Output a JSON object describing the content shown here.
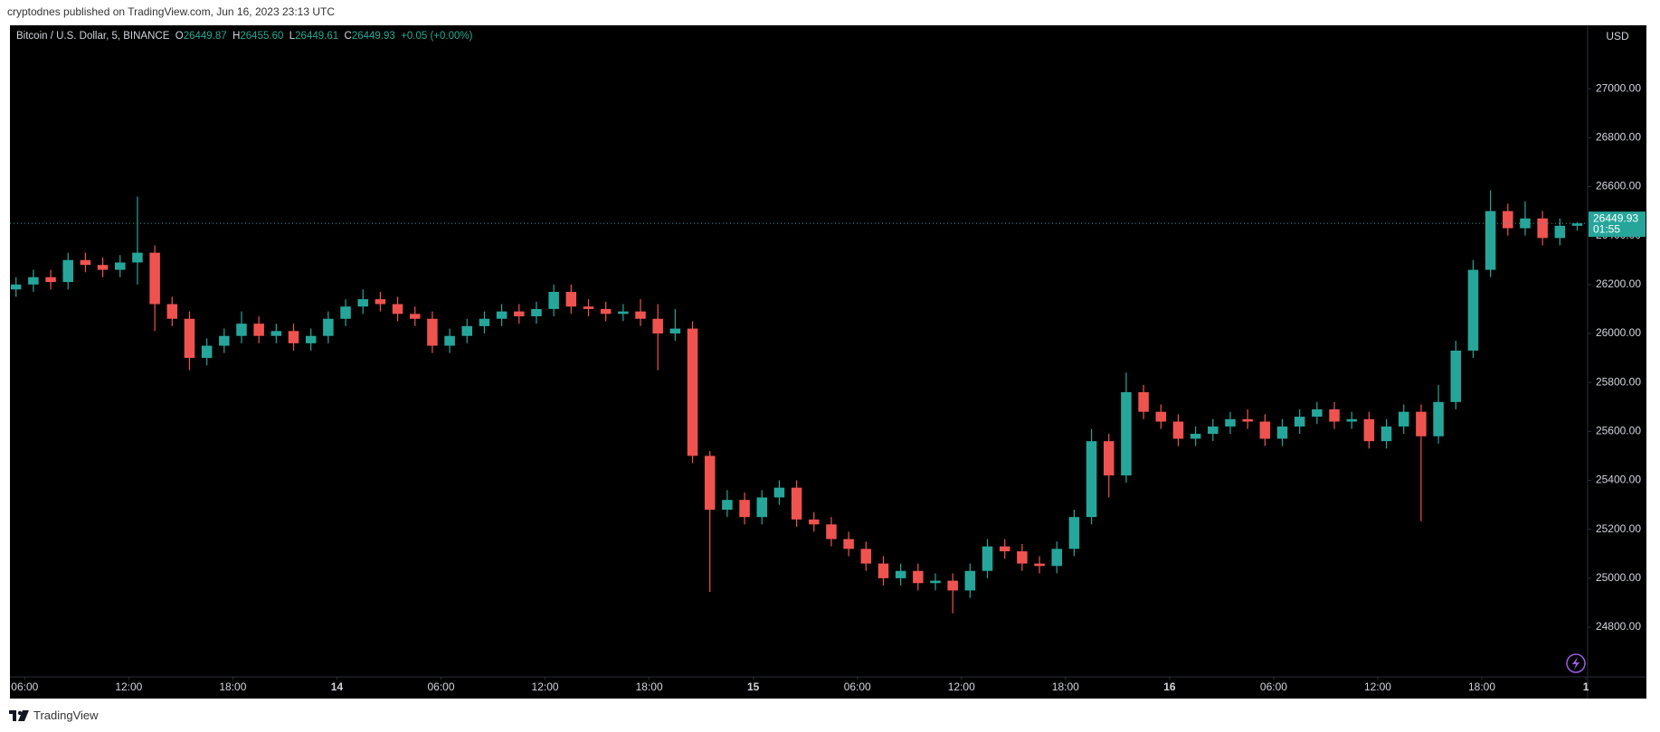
{
  "header": {
    "publisher": "cryptodnes published on TradingView.com, Jun 16, 2023 23:13 UTC"
  },
  "footer": {
    "brand": "TradingView"
  },
  "chart_data": {
    "type": "candlestick",
    "symbol": "Bitcoin / U.S. Dollar, 5, BINANCE",
    "legend": {
      "open_label": "O",
      "open": "26449.87",
      "high_label": "H",
      "high": "26455.60",
      "low_label": "L",
      "low": "26449.61",
      "close_label": "C",
      "close": "26449.93",
      "change": "+0.05 (+0.00%)"
    },
    "currency": "USD",
    "x": [
      5.5,
      6.5,
      7.5,
      8.5,
      9.5,
      10.5,
      11.5,
      12.5,
      13.5,
      14.5,
      15.5,
      16.5,
      17.5,
      18.5,
      19.5,
      20.5,
      21.5,
      22.5,
      23.5,
      24.5,
      25.5,
      26.5,
      27.5,
      28.5,
      29.5,
      30.5,
      31.5,
      32.5,
      33.5,
      34.5,
      35.5,
      36.5,
      37.5,
      38.5,
      39.5,
      40.5,
      41.5,
      42.5,
      43.5,
      44.5,
      45.5,
      46.5,
      47.5,
      48.5,
      49.5,
      50.5,
      51.5,
      52.5,
      53.5,
      54.5,
      55.5,
      56.5,
      57.5,
      58.5,
      59.5,
      60.5,
      61.5,
      62.5,
      63.5,
      64.5,
      65.5,
      66.5,
      67.5,
      68.5,
      69.5,
      70.5,
      71.5,
      72.5,
      73.5,
      74.5,
      75.5,
      76.5,
      77.5,
      78.5,
      79.5,
      80.5,
      81.5,
      82.5,
      83.5,
      84.5,
      85.5,
      86.5,
      87.5,
      88.5,
      89.5,
      90.5,
      91.5,
      92.5,
      93.5,
      94.5,
      95.5
    ],
    "open": [
      26180,
      26200,
      26230,
      26210,
      26300,
      26280,
      26260,
      26290,
      26330,
      26120,
      26060,
      25900,
      25950,
      25990,
      26040,
      25990,
      26010,
      25960,
      25990,
      26060,
      26110,
      26140,
      26120,
      26080,
      26060,
      25950,
      25990,
      26030,
      26060,
      26090,
      26070,
      26100,
      26170,
      26110,
      26100,
      26080,
      26090,
      26060,
      26000,
      26020,
      25500,
      25280,
      25320,
      25250,
      25330,
      25370,
      25240,
      25220,
      25160,
      25120,
      25060,
      25000,
      25030,
      24980,
      24990,
      24950,
      25030,
      25130,
      25110,
      25060,
      25050,
      25120,
      25250,
      25560,
      25420,
      25760,
      25680,
      25640,
      25570,
      25590,
      25620,
      25650,
      25640,
      25570,
      25620,
      25660,
      25690,
      25640,
      25650,
      25560,
      25620,
      25680,
      25580,
      25720,
      25930,
      26260,
      26500,
      26430,
      26470,
      26390,
      26440
    ],
    "high": [
      26230,
      26260,
      26260,
      26330,
      26330,
      26310,
      26320,
      26559,
      26360,
      26150,
      26090,
      25980,
      26020,
      26090,
      26070,
      26040,
      26040,
      26020,
      26090,
      26140,
      26180,
      26170,
      26150,
      26110,
      26090,
      26020,
      26060,
      26090,
      26120,
      26120,
      26130,
      26200,
      26200,
      26140,
      26130,
      26120,
      26140,
      26120,
      26100,
      26050,
      25520,
      25360,
      25350,
      25360,
      25400,
      25400,
      25270,
      25250,
      25190,
      25150,
      25090,
      25060,
      25060,
      25020,
      25020,
      25060,
      25160,
      25160,
      25140,
      25090,
      25150,
      25280,
      25610,
      25590,
      25840,
      25790,
      25710,
      25670,
      25620,
      25650,
      25680,
      25690,
      25670,
      25650,
      25690,
      25720,
      25720,
      25680,
      25680,
      25650,
      25710,
      25710,
      25790,
      25970,
      26300,
      26585,
      26530,
      26540,
      26500,
      26470,
      26455.6
    ],
    "low": [
      26150,
      26170,
      26180,
      26180,
      26250,
      26230,
      26230,
      26200,
      26010,
      26030,
      25850,
      25870,
      25920,
      25960,
      25960,
      25960,
      25930,
      25930,
      25960,
      26030,
      26080,
      26090,
      26050,
      26030,
      25920,
      25920,
      25960,
      26000,
      26030,
      26040,
      26040,
      26070,
      26080,
      26070,
      26050,
      26050,
      26030,
      25850,
      25970,
      25470,
      24944,
      25250,
      25220,
      25220,
      25300,
      25210,
      25190,
      25130,
      25090,
      25030,
      24970,
      24970,
      24950,
      24950,
      24857,
      24920,
      25000,
      25080,
      25030,
      25020,
      25020,
      25090,
      25220,
      25330,
      25390,
      25650,
      25610,
      25540,
      25540,
      25560,
      25590,
      25610,
      25540,
      25540,
      25590,
      25630,
      25610,
      25610,
      25530,
      25530,
      25590,
      25233,
      25550,
      25690,
      25900,
      26230,
      26400,
      26400,
      26360,
      26360,
      26420
    ],
    "close": [
      26200,
      26230,
      26210,
      26300,
      26280,
      26260,
      26290,
      26330,
      26120,
      26060,
      25900,
      25950,
      25990,
      26040,
      25990,
      26010,
      25960,
      25990,
      26060,
      26110,
      26140,
      26120,
      26080,
      26060,
      25950,
      25990,
      26030,
      26060,
      26090,
      26070,
      26100,
      26170,
      26110,
      26100,
      26080,
      26090,
      26060,
      26000,
      26020,
      25500,
      25280,
      25320,
      25250,
      25330,
      25370,
      25240,
      25220,
      25160,
      25120,
      25060,
      25000,
      25030,
      24980,
      24990,
      24950,
      25030,
      25130,
      25110,
      25060,
      25050,
      25120,
      25250,
      25560,
      25420,
      25760,
      25680,
      25640,
      25570,
      25590,
      25620,
      25650,
      25640,
      25570,
      25620,
      25660,
      25690,
      25640,
      25650,
      25560,
      25620,
      25680,
      25580,
      25720,
      25930,
      26260,
      26500,
      26430,
      26470,
      26390,
      26440,
      26449.93
    ],
    "up_color": "#26a69a",
    "down_color": "#ef5350",
    "xlim": [
      5.15,
      96.1
    ],
    "xticks": [
      {
        "value": 6,
        "label": "06:00"
      },
      {
        "value": 12,
        "label": "12:00"
      },
      {
        "value": 18,
        "label": "18:00"
      },
      {
        "value": 24,
        "label": "14"
      },
      {
        "value": 30,
        "label": "06:00"
      },
      {
        "value": 36,
        "label": "12:00"
      },
      {
        "value": 42,
        "label": "18:00"
      },
      {
        "value": 48,
        "label": "15"
      },
      {
        "value": 54,
        "label": "06:00"
      },
      {
        "value": 60,
        "label": "12:00"
      },
      {
        "value": 66,
        "label": "18:00"
      },
      {
        "value": 72,
        "label": "16"
      },
      {
        "value": 78,
        "label": "06:00"
      },
      {
        "value": 84,
        "label": "12:00"
      },
      {
        "value": 90,
        "label": "18:00"
      },
      {
        "value": 96,
        "label": "1"
      }
    ],
    "ylim": [
      24597,
      27259
    ],
    "yticks": [
      {
        "value": 24800,
        "label": "24800.00"
      },
      {
        "value": 25000,
        "label": "25000.00"
      },
      {
        "value": 25200,
        "label": "25200.00"
      },
      {
        "value": 25400,
        "label": "25400.00"
      },
      {
        "value": 25600,
        "label": "25600.00"
      },
      {
        "value": 25800,
        "label": "25800.00"
      },
      {
        "value": 26000,
        "label": "26000.00"
      },
      {
        "value": 26200,
        "label": "26200.00"
      },
      {
        "value": 26400,
        "label": "26400.00"
      },
      {
        "value": 26600,
        "label": "26600.00"
      },
      {
        "value": 26800,
        "label": "26800.00"
      },
      {
        "value": 27000,
        "label": "27000.00"
      }
    ],
    "last_price": 26449.93,
    "countdown": "01:55",
    "grid": false
  }
}
